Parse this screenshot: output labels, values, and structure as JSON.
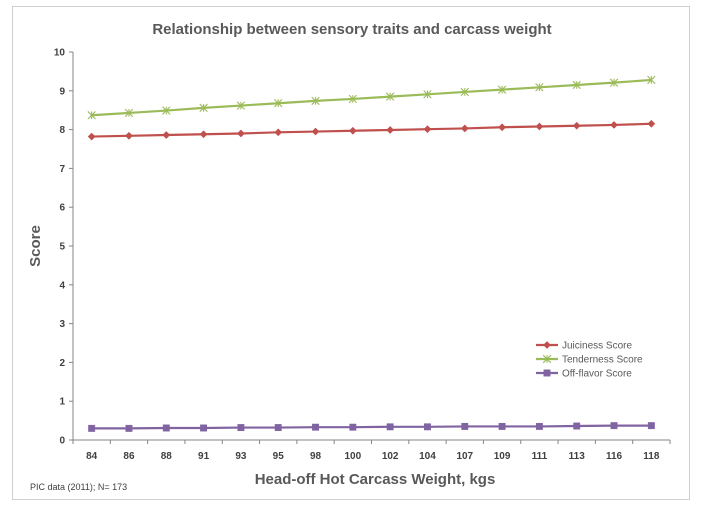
{
  "chart_data": {
    "type": "line",
    "title": "Relationship between sensory traits and carcass weight",
    "xlabel": "Head-off Hot Carcass Weight, kgs",
    "ylabel": "Score",
    "categories": [
      "84",
      "86",
      "88",
      "91",
      "93",
      "95",
      "98",
      "100",
      "102",
      "104",
      "107",
      "109",
      "111",
      "113",
      "116",
      "118"
    ],
    "ylim": [
      0,
      10
    ],
    "yticks": [
      0,
      1,
      2,
      3,
      4,
      5,
      6,
      7,
      8,
      9,
      10
    ],
    "grid": false,
    "legend_position": "bottom-right",
    "series": [
      {
        "name": "Juiciness Score",
        "color": "#c0504d",
        "marker": "diamond",
        "values": [
          7.82,
          7.84,
          7.86,
          7.88,
          7.9,
          7.93,
          7.95,
          7.97,
          7.99,
          8.01,
          8.03,
          8.06,
          8.08,
          8.1,
          8.12,
          8.15
        ]
      },
      {
        "name": "Tenderness Score",
        "color": "#9bbb59",
        "marker": "asterisk",
        "values": [
          8.37,
          8.43,
          8.49,
          8.56,
          8.62,
          8.68,
          8.74,
          8.79,
          8.85,
          8.91,
          8.97,
          9.03,
          9.09,
          9.15,
          9.21,
          9.28
        ]
      },
      {
        "name": "Off-flavor Score",
        "color": "#8064a2",
        "marker": "square",
        "values": [
          0.3,
          0.3,
          0.31,
          0.31,
          0.32,
          0.32,
          0.33,
          0.33,
          0.34,
          0.34,
          0.35,
          0.35,
          0.35,
          0.36,
          0.37,
          0.37
        ]
      }
    ]
  },
  "footnote": "PIC data (2011); N= 173"
}
